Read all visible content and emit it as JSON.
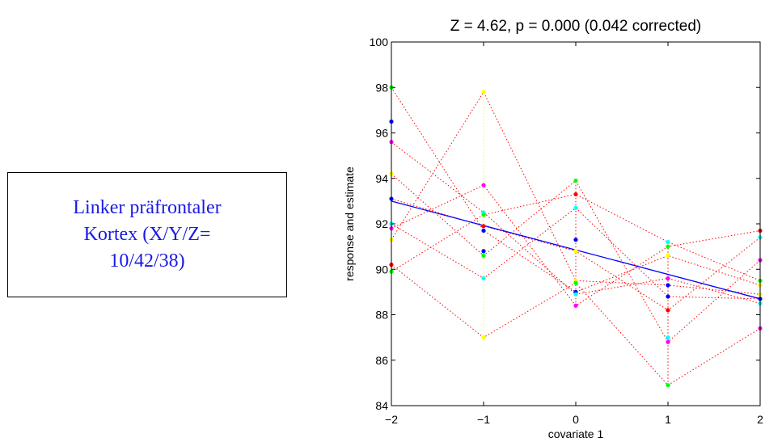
{
  "label_box": {
    "text": "Linker präfrontaler\nKortex (X/Y/Z=\n10/42/38)"
  },
  "chart_data": {
    "type": "scatter",
    "title": "Z = 4.62, p = 0.000 (0.042 corrected)",
    "xlabel": "covariate 1",
    "ylabel": "response and estimate",
    "xlim": [
      -2,
      2
    ],
    "ylim": [
      84,
      100
    ],
    "xticks": [
      -2,
      -1,
      0,
      1,
      2
    ],
    "yticks": [
      84,
      86,
      88,
      90,
      92,
      94,
      96,
      98,
      100
    ],
    "grid": false,
    "fit_line": {
      "color": "#0000ff",
      "points": [
        [
          -2,
          93.0
        ],
        [
          2,
          88.7
        ]
      ]
    },
    "colors": {
      "red": "#ff0000",
      "green": "#00ff00",
      "blue": "#0000ff",
      "yellow": "#ffff00",
      "magenta": "#ff00ff",
      "cyan": "#00ffff",
      "dotted_lines": "#ff0000"
    },
    "points": [
      {
        "x": -2,
        "y": 98.0,
        "color": "green"
      },
      {
        "x": -2,
        "y": 96.5,
        "color": "blue"
      },
      {
        "x": -2,
        "y": 95.6,
        "color": "magenta"
      },
      {
        "x": -2,
        "y": 94.2,
        "color": "yellow"
      },
      {
        "x": -2,
        "y": 93.1,
        "color": "blue"
      },
      {
        "x": -2,
        "y": 92.0,
        "color": "cyan"
      },
      {
        "x": -2,
        "y": 91.8,
        "color": "magenta"
      },
      {
        "x": -2,
        "y": 91.3,
        "color": "yellow"
      },
      {
        "x": -2,
        "y": 90.2,
        "color": "red"
      },
      {
        "x": -2,
        "y": 89.9,
        "color": "green"
      },
      {
        "x": -1,
        "y": 97.8,
        "color": "yellow"
      },
      {
        "x": -1,
        "y": 93.7,
        "color": "magenta"
      },
      {
        "x": -1,
        "y": 92.5,
        "color": "cyan"
      },
      {
        "x": -1,
        "y": 92.4,
        "color": "green"
      },
      {
        "x": -1,
        "y": 91.9,
        "color": "red"
      },
      {
        "x": -1,
        "y": 91.7,
        "color": "blue"
      },
      {
        "x": -1,
        "y": 90.8,
        "color": "blue"
      },
      {
        "x": -1,
        "y": 90.6,
        "color": "green"
      },
      {
        "x": -1,
        "y": 89.6,
        "color": "cyan"
      },
      {
        "x": -1,
        "y": 87.0,
        "color": "yellow"
      },
      {
        "x": 0,
        "y": 93.9,
        "color": "green"
      },
      {
        "x": 0,
        "y": 93.3,
        "color": "red"
      },
      {
        "x": 0,
        "y": 92.7,
        "color": "cyan"
      },
      {
        "x": 0,
        "y": 91.3,
        "color": "blue"
      },
      {
        "x": 0,
        "y": 90.8,
        "color": "yellow"
      },
      {
        "x": 0,
        "y": 89.5,
        "color": "yellow"
      },
      {
        "x": 0,
        "y": 89.4,
        "color": "green"
      },
      {
        "x": 0,
        "y": 89.0,
        "color": "blue"
      },
      {
        "x": 0,
        "y": 88.9,
        "color": "cyan"
      },
      {
        "x": 0,
        "y": 88.4,
        "color": "magenta"
      },
      {
        "x": 1,
        "y": 91.2,
        "color": "cyan"
      },
      {
        "x": 1,
        "y": 91.0,
        "color": "green"
      },
      {
        "x": 1,
        "y": 90.6,
        "color": "yellow"
      },
      {
        "x": 1,
        "y": 89.6,
        "color": "magenta"
      },
      {
        "x": 1,
        "y": 89.3,
        "color": "blue"
      },
      {
        "x": 1,
        "y": 88.8,
        "color": "blue"
      },
      {
        "x": 1,
        "y": 88.2,
        "color": "red"
      },
      {
        "x": 1,
        "y": 87.0,
        "color": "cyan"
      },
      {
        "x": 1,
        "y": 86.8,
        "color": "magenta"
      },
      {
        "x": 1,
        "y": 84.9,
        "color": "green"
      },
      {
        "x": 2,
        "y": 91.7,
        "color": "red"
      },
      {
        "x": 2,
        "y": 91.4,
        "color": "cyan"
      },
      {
        "x": 2,
        "y": 90.4,
        "color": "magenta"
      },
      {
        "x": 2,
        "y": 89.5,
        "color": "green"
      },
      {
        "x": 2,
        "y": 89.3,
        "color": "yellow"
      },
      {
        "x": 2,
        "y": 88.9,
        "color": "yellow"
      },
      {
        "x": 2,
        "y": 88.7,
        "color": "blue"
      },
      {
        "x": 2,
        "y": 88.5,
        "color": "cyan"
      },
      {
        "x": 2,
        "y": 87.4,
        "color": "magenta"
      }
    ],
    "dotted_connections": [
      [
        [
          -2,
          91.8
        ],
        [
          -1,
          93.7
        ],
        [
          0,
          88.4
        ],
        [
          1,
          91.0
        ],
        [
          2,
          91.7
        ]
      ],
      [
        [
          -2,
          94.2
        ],
        [
          -1,
          90.6
        ],
        [
          0,
          93.9
        ],
        [
          1,
          86.8
        ],
        [
          2,
          90.4
        ]
      ],
      [
        [
          -2,
          91.3
        ],
        [
          -1,
          97.8
        ],
        [
          0,
          89.5
        ],
        [
          1,
          89.3
        ],
        [
          2,
          88.9
        ]
      ],
      [
        [
          -2,
          89.9
        ],
        [
          -1,
          92.4
        ],
        [
          0,
          93.3
        ],
        [
          1,
          91.2
        ],
        [
          2,
          89.5
        ]
      ],
      [
        [
          -2,
          90.2
        ],
        [
          -1,
          87.0
        ],
        [
          0,
          89.4
        ],
        [
          1,
          84.9
        ],
        [
          2,
          87.4
        ]
      ],
      [
        [
          -2,
          93.1
        ],
        [
          -1,
          91.9
        ],
        [
          0,
          90.8
        ],
        [
          1,
          88.2
        ],
        [
          2,
          91.4
        ]
      ],
      [
        [
          -2,
          92.0
        ],
        [
          -1,
          89.6
        ],
        [
          0,
          92.7
        ],
        [
          1,
          88.8
        ],
        [
          2,
          88.7
        ]
      ],
      [
        [
          -2,
          95.6
        ],
        [
          -1,
          92.5
        ],
        [
          0,
          88.9
        ],
        [
          1,
          89.6
        ],
        [
          2,
          88.5
        ]
      ],
      [
        [
          -2,
          98.0
        ],
        [
          -1,
          91.7
        ],
        [
          0,
          89.0
        ],
        [
          1,
          90.6
        ],
        [
          2,
          89.3
        ]
      ]
    ],
    "vertical_lines": [
      {
        "x": -2,
        "y": [
          89.9,
          98.0
        ],
        "color": "green"
      },
      {
        "x": -1,
        "y": [
          87.0,
          97.8
        ],
        "color": "yellow"
      },
      {
        "x": 0,
        "y": [
          88.4,
          93.9
        ],
        "color": "red"
      },
      {
        "x": 1,
        "y": [
          84.9,
          91.2
        ],
        "color": "red"
      },
      {
        "x": 2,
        "y": [
          87.4,
          91.7
        ],
        "color": "red"
      }
    ]
  }
}
